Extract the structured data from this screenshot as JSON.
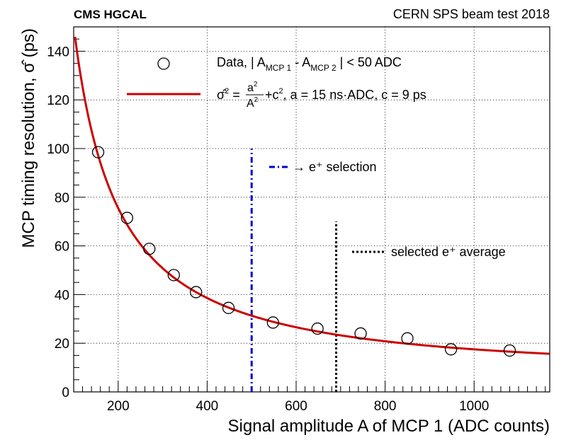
{
  "header": {
    "left_label": "CMS HGCAL",
    "right_label": "CERN SPS beam test 2018"
  },
  "chart_data": {
    "type": "scatter",
    "xlabel": "Signal amplitude A of MCP 1 (ADC counts)",
    "ylabel": "MCP timing resolution, σ̂ (ps)",
    "xlim": [
      100,
      1170
    ],
    "ylim": [
      0,
      150
    ],
    "x_ticks": [
      "200",
      "400",
      "600",
      "800",
      "1000"
    ],
    "y_ticks": [
      "0",
      "20",
      "40",
      "60",
      "80",
      "100",
      "120",
      "140"
    ],
    "grid": true,
    "series": [
      {
        "name": "Data, | A_MCP 1 - A_MCP 2 | < 50 ADC",
        "marker": "open-circle",
        "points": [
          {
            "x": 155,
            "y": 98.5
          },
          {
            "x": 220,
            "y": 71.5
          },
          {
            "x": 270,
            "y": 58.8
          },
          {
            "x": 325,
            "y": 48.0
          },
          {
            "x": 375,
            "y": 41.0
          },
          {
            "x": 448,
            "y": 34.5
          },
          {
            "x": 548,
            "y": 28.5
          },
          {
            "x": 648,
            "y": 26.0
          },
          {
            "x": 745,
            "y": 24.0
          },
          {
            "x": 850,
            "y": 22.0
          },
          {
            "x": 948,
            "y": 17.5
          },
          {
            "x": 1080,
            "y": 17.0
          }
        ]
      },
      {
        "name": "fit",
        "type": "line",
        "color": "#cc0000",
        "a_ns_adc": 15,
        "c_ps": 9,
        "x_range": [
          103,
          1170
        ]
      }
    ],
    "vertical_lines": [
      {
        "x": 500,
        "y_top": 100,
        "style": "dash-dot",
        "color": "#0000cc",
        "label": "→ e⁺ selection"
      },
      {
        "x": 690,
        "y_top": 70,
        "style": "dotted",
        "color": "#000000",
        "label": "selected e⁺ average"
      }
    ],
    "legend": {
      "placement": "top-right",
      "data_text": "Data, | A",
      "data_sub1": "MCP 1",
      "data_mid": " - A",
      "data_sub2": "MCP 2",
      "data_tail": " | < 50 ADC",
      "fit_lhs": "σ̂",
      "fit_num": "a",
      "fit_den": "A",
      "fit_tail": "+c",
      "fit_params": ", a = 15 ns·ADC, c = 9 ps",
      "sup2": "2"
    }
  }
}
